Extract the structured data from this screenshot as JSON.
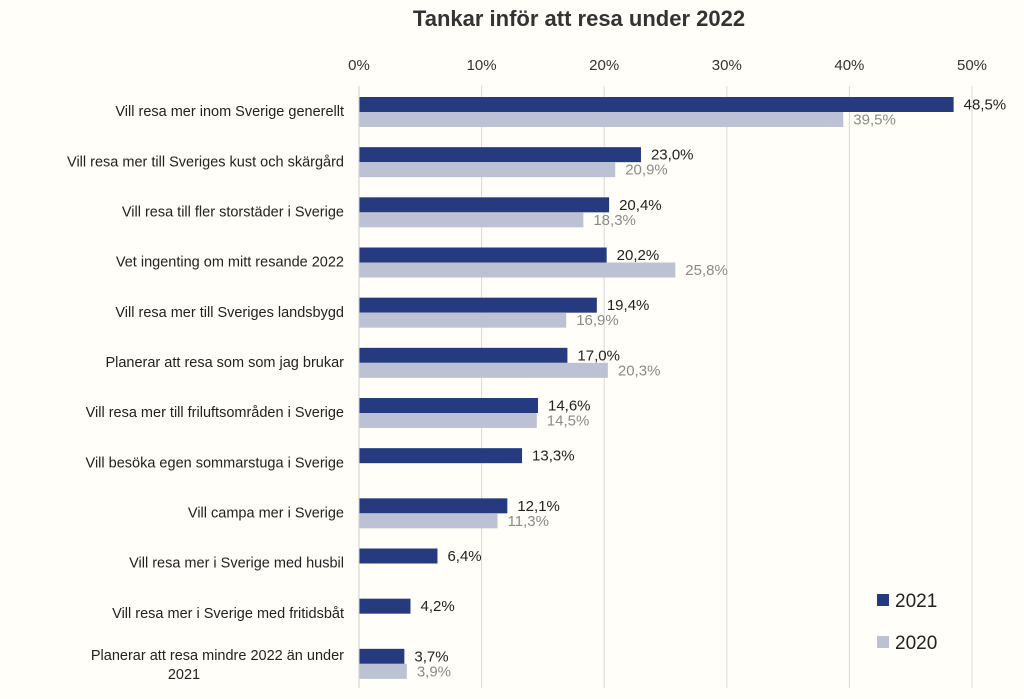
{
  "chart_data": {
    "type": "bar",
    "orientation": "horizontal",
    "title": "Tankar inför att resa under 2022",
    "xlabel": "",
    "ylabel": "",
    "xlim": [
      0,
      50
    ],
    "x_ticks": [
      "0%",
      "10%",
      "20%",
      "30%",
      "40%",
      "50%"
    ],
    "x_tick_values": [
      0,
      10,
      20,
      30,
      40,
      50
    ],
    "grid": true,
    "legend_position": "bottom-right",
    "categories": [
      "Vill resa mer inom Sverige generellt",
      "Vill resa mer till Sveriges kust och skärgård",
      "Vill resa till fler storstäder i Sverige",
      "Vet ingenting om mitt resande 2022",
      "Vill resa mer till Sveriges landsbygd",
      "Planerar att resa som som jag brukar",
      "Vill resa mer till friluftsområden i Sverige",
      "Vill besöka egen sommarstuga i Sverige",
      "Vill campa mer i Sverige",
      "Vill resa mer i Sverige med husbil",
      "Vill resa mer i Sverige med fritidsbåt",
      "Planerar att resa mindre 2022 än under 2021"
    ],
    "series": [
      {
        "name": "2021",
        "color": "#263a80",
        "values": [
          48.5,
          23.0,
          20.4,
          20.2,
          19.4,
          17.0,
          14.6,
          13.3,
          12.1,
          6.4,
          4.2,
          3.7
        ],
        "labels": [
          "48,5%",
          "23,0%",
          "20,4%",
          "20,2%",
          "19,4%",
          "17,0%",
          "14,6%",
          "13,3%",
          "12,1%",
          "6,4%",
          "4,2%",
          "3,7%"
        ]
      },
      {
        "name": "2020",
        "color": "#bcc2d4",
        "values": [
          39.5,
          20.9,
          18.3,
          25.8,
          16.9,
          20.3,
          14.5,
          null,
          11.3,
          null,
          null,
          3.9
        ],
        "labels": [
          "39,5%",
          "20,9%",
          "18,3%",
          "25,8%",
          "16,9%",
          "20,3%",
          "14,5%",
          null,
          "11,3%",
          null,
          null,
          "3,9%"
        ]
      }
    ]
  }
}
